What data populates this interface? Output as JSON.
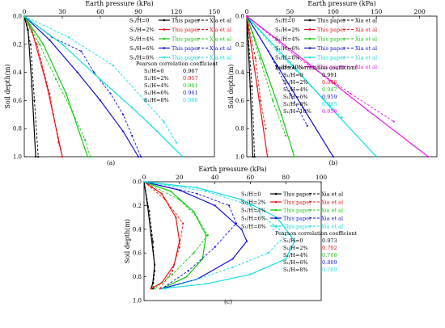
{
  "chart_data": [
    {
      "type": "line",
      "panel_label": "(a)",
      "xlabel": "Earth pressure (kPa)",
      "ylabel": "Soil depth(m)",
      "xlim": [
        0,
        150
      ],
      "ylim": [
        0,
        1.0
      ],
      "xticks": [
        "0",
        "30",
        "60",
        "90",
        "120",
        "150"
      ],
      "yticks": [
        "0.0",
        "0.2",
        "0.4",
        "0.6",
        "0.8",
        "1.0"
      ],
      "legend": [
        {
          "cond": "S₁/H=0",
          "a": "This paper",
          "b": "Xia et al",
          "color": "#000000"
        },
        {
          "cond": "S₁/H=2%",
          "a": "This paper",
          "b": "Xia et al",
          "color": "#ee1111"
        },
        {
          "cond": "S₁/H=4%",
          "a": "This paper",
          "b": "Xia et al",
          "color": "#11cc11"
        },
        {
          "cond": "S₁/H=6%",
          "a": "This paper",
          "b": "Xia et al",
          "color": "#1111dd"
        },
        {
          "cond": "S₁/H=8%",
          "a": "This paper",
          "b": "Xia et al",
          "color": "#11dddd"
        }
      ],
      "pearson_title": "Pearson correlation coefficient",
      "pearson": [
        {
          "cond": "S₁/H=0",
          "value": "0.967",
          "color": "#000000"
        },
        {
          "cond": "S₁/H=2%",
          "value": "0.957",
          "color": "#ee1111"
        },
        {
          "cond": "S₁/H=4%",
          "value": "0.961",
          "color": "#11cc11"
        },
        {
          "cond": "S₁/H=6%",
          "value": "0.961",
          "color": "#1111dd"
        },
        {
          "cond": "S₁/H=8%",
          "value": "0.988",
          "color": "#11dddd"
        }
      ],
      "series": [
        {
          "color": "#000000",
          "style": "solid",
          "x": [
            0,
            3,
            6,
            9
          ],
          "y": [
            0,
            0.1,
            0.5,
            1.0
          ]
        },
        {
          "color": "#000000",
          "style": "dashed",
          "x": [
            0,
            5,
            8,
            11
          ],
          "y": [
            0,
            0.2,
            0.6,
            1.0
          ]
        },
        {
          "color": "#ee1111",
          "style": "solid",
          "x": [
            0,
            6,
            18,
            30
          ],
          "y": [
            0,
            0.1,
            0.5,
            1.0
          ]
        },
        {
          "color": "#ee1111",
          "style": "dashed",
          "x": [
            0,
            10,
            20,
            23,
            27,
            30
          ],
          "y": [
            0,
            0.2,
            0.55,
            0.7,
            0.9,
            1.0
          ]
        },
        {
          "color": "#11cc11",
          "style": "solid",
          "x": [
            0,
            15,
            33,
            50
          ],
          "y": [
            0,
            0.2,
            0.55,
            1.0
          ]
        },
        {
          "color": "#11cc11",
          "style": "dashed",
          "x": [
            0,
            12,
            25,
            38,
            48,
            52
          ],
          "y": [
            0,
            0.2,
            0.45,
            0.68,
            0.88,
            1.0
          ]
        },
        {
          "color": "#1111dd",
          "style": "solid",
          "x": [
            0,
            20,
            42,
            60,
            78,
            90
          ],
          "y": [
            0,
            0.17,
            0.4,
            0.6,
            0.82,
            1.0
          ]
        },
        {
          "color": "#1111dd",
          "style": "dashed",
          "x": [
            0,
            22,
            45,
            55,
            68,
            78,
            85,
            92
          ],
          "y": [
            0,
            0.15,
            0.25,
            0.4,
            0.55,
            0.7,
            0.85,
            1.0
          ]
        },
        {
          "color": "#11dddd",
          "style": "solid",
          "x": [
            0,
            30,
            60,
            85,
            105,
            125
          ],
          "y": [
            0,
            0.2,
            0.45,
            0.65,
            0.82,
            1.0
          ]
        },
        {
          "color": "#11dddd",
          "style": "dashed",
          "x": [
            0,
            35,
            70,
            95,
            110,
            120
          ],
          "y": [
            0,
            0.15,
            0.35,
            0.6,
            0.75,
            0.9
          ]
        }
      ]
    },
    {
      "type": "line",
      "panel_label": "(b)",
      "xlabel": "Earth pressure (kPa)",
      "ylabel": "Soil depth(m)",
      "xlim": [
        0,
        220
      ],
      "ylim": [
        0,
        1.0
      ],
      "xticks": [
        "0",
        "50",
        "100",
        "150",
        "200"
      ],
      "xtick_values": [
        0,
        50,
        100,
        150,
        200
      ],
      "yticks": [
        "0.0",
        "0.2",
        "0.4",
        "0.6",
        "0.8",
        "1.0"
      ],
      "legend": [
        {
          "cond": "S₁/H=0",
          "a": "This paper",
          "b": "Xia et al",
          "color": "#000000"
        },
        {
          "cond": "S₁/H=2%",
          "a": "This paper",
          "b": "Xia et al",
          "color": "#ee1111"
        },
        {
          "cond": "S₁/H=4%",
          "a": "This paper",
          "b": "Xia et al",
          "color": "#11cc11"
        },
        {
          "cond": "S₁/H=6%",
          "a": "This paper",
          "b": "Xia et al",
          "color": "#1111dd"
        },
        {
          "cond": "S₁/H=8%",
          "a": "This paper",
          "b": "Xia et al",
          "color": "#11dddd"
        },
        {
          "cond": "S₁/H=10%",
          "a": "This paper",
          "b": "Xia et al",
          "color": "#ee11ee"
        }
      ],
      "pearson_title": "Pearson correlation coefficient",
      "pearson": [
        {
          "cond": "S₁/H=0",
          "value": "0.991",
          "color": "#000000"
        },
        {
          "cond": "S₁/H=2%",
          "value": "0.946",
          "color": "#ee1111"
        },
        {
          "cond": "S₁/H=4%",
          "value": "0.947",
          "color": "#11cc11"
        },
        {
          "cond": "S₁/H=6%",
          "value": "0.959",
          "color": "#1111dd"
        },
        {
          "cond": "S₁/H=8%",
          "value": "0.965",
          "color": "#11dddd"
        },
        {
          "cond": "S₁/H=10%",
          "value": "0.956",
          "color": "#ee11ee"
        }
      ],
      "series": [
        {
          "color": "#000000",
          "style": "solid",
          "x": [
            0,
            4,
            7
          ],
          "y": [
            0,
            0.5,
            1.0
          ]
        },
        {
          "color": "#000000",
          "style": "dashed",
          "x": [
            0,
            6,
            9
          ],
          "y": [
            0,
            0.5,
            1.0
          ]
        },
        {
          "color": "#ee1111",
          "style": "solid",
          "x": [
            0,
            12,
            24
          ],
          "y": [
            0,
            0.5,
            1.0
          ]
        },
        {
          "color": "#ee1111",
          "style": "dashed",
          "x": [
            0,
            10,
            16,
            22
          ],
          "y": [
            0,
            0.3,
            0.6,
            0.8
          ]
        },
        {
          "color": "#11cc11",
          "style": "solid",
          "x": [
            0,
            20,
            40,
            55
          ],
          "y": [
            0,
            0.35,
            0.7,
            1.0
          ]
        },
        {
          "color": "#11cc11",
          "style": "dashed",
          "x": [
            0,
            15,
            30,
            45
          ],
          "y": [
            0,
            0.3,
            0.6,
            0.85
          ]
        },
        {
          "color": "#1111dd",
          "style": "solid",
          "x": [
            0,
            30,
            65,
            100
          ],
          "y": [
            0,
            0.3,
            0.65,
            1.0
          ]
        },
        {
          "color": "#1111dd",
          "style": "dashed",
          "x": [
            0,
            25,
            50,
            70
          ],
          "y": [
            0,
            0.25,
            0.55,
            0.78
          ]
        },
        {
          "color": "#11dddd",
          "style": "solid",
          "x": [
            0,
            50,
            100,
            150
          ],
          "y": [
            0,
            0.33,
            0.67,
            1.0
          ]
        },
        {
          "color": "#11dddd",
          "style": "dashed",
          "x": [
            0,
            35,
            75,
            110
          ],
          "y": [
            0,
            0.25,
            0.5,
            0.72
          ]
        },
        {
          "color": "#ee11ee",
          "style": "solid",
          "x": [
            0,
            70,
            140,
            210
          ],
          "y": [
            0,
            0.33,
            0.67,
            1.0
          ]
        },
        {
          "color": "#ee11ee",
          "style": "dashed",
          "x": [
            0,
            60,
            120,
            170
          ],
          "y": [
            0,
            0.3,
            0.55,
            0.75
          ]
        }
      ]
    },
    {
      "type": "line",
      "panel_label": "(c)",
      "xlabel": "Earth pressure (kPa)",
      "ylabel": "Soil depth(m)",
      "xlim": [
        0,
        100
      ],
      "ylim": [
        0,
        1.0
      ],
      "xticks": [
        "0",
        "20",
        "40",
        "60",
        "80",
        "100"
      ],
      "yticks": [
        "0.0",
        "0.2",
        "0.4",
        "0.6",
        "0.8",
        "1.0"
      ],
      "legend": [
        {
          "cond": "S₁/H=0",
          "a": "This paper",
          "b": "Xia et al",
          "color": "#000000"
        },
        {
          "cond": "S₁/H=2%",
          "a": "This paper",
          "b": "Xia et al",
          "color": "#ee1111"
        },
        {
          "cond": "S₁/H=4%",
          "a": "This paper",
          "b": "Xia et al",
          "color": "#11cc11"
        },
        {
          "cond": "S₁/H=6%",
          "a": "This paper",
          "b": "Xia et al",
          "color": "#1111dd"
        },
        {
          "cond": "S₁/H=8%",
          "a": "This paper",
          "b": "Xia et al",
          "color": "#11dddd"
        }
      ],
      "pearson_title": "Pearson correlation coefficient",
      "pearson": [
        {
          "cond": "S₁/H=0",
          "value": "0.973",
          "color": "#000000"
        },
        {
          "cond": "S₁/H=2%",
          "value": "0.792",
          "color": "#ee1111"
        },
        {
          "cond": "S₁/H=4%",
          "value": "0.760",
          "color": "#11cc11"
        },
        {
          "cond": "S₁/H=6%",
          "value": "0.809",
          "color": "#1111dd"
        },
        {
          "cond": "S₁/H=8%",
          "value": "0.769",
          "color": "#11dddd"
        }
      ],
      "series": [
        {
          "color": "#000000",
          "style": "solid",
          "x": [
            0,
            2,
            4,
            6,
            5,
            4
          ],
          "y": [
            0,
            0.2,
            0.45,
            0.7,
            0.85,
            0.9
          ]
        },
        {
          "color": "#000000",
          "style": "dashed",
          "x": [
            0,
            3,
            5,
            6,
            5
          ],
          "y": [
            0,
            0.25,
            0.5,
            0.75,
            0.9
          ]
        },
        {
          "color": "#ee1111",
          "style": "solid",
          "x": [
            0,
            10,
            18,
            20,
            17,
            10,
            4
          ],
          "y": [
            0,
            0.1,
            0.3,
            0.5,
            0.7,
            0.85,
            0.9
          ]
        },
        {
          "color": "#ee1111",
          "style": "dashed",
          "x": [
            0,
            12,
            22,
            20,
            16,
            9
          ],
          "y": [
            0,
            0.15,
            0.35,
            0.55,
            0.75,
            0.9
          ]
        },
        {
          "color": "#11cc11",
          "style": "solid",
          "x": [
            0,
            15,
            28,
            35,
            33,
            24,
            10
          ],
          "y": [
            0,
            0.08,
            0.25,
            0.45,
            0.65,
            0.8,
            0.9
          ]
        },
        {
          "color": "#11cc11",
          "style": "dashed",
          "x": [
            0,
            20,
            30,
            36,
            28,
            16,
            6
          ],
          "y": [
            0,
            0.15,
            0.3,
            0.45,
            0.6,
            0.78,
            0.9
          ]
        },
        {
          "color": "#1111dd",
          "style": "solid",
          "x": [
            0,
            20,
            40,
            55,
            58,
            50,
            30,
            10
          ],
          "y": [
            0,
            0.07,
            0.2,
            0.4,
            0.5,
            0.65,
            0.82,
            0.9
          ]
        },
        {
          "color": "#1111dd",
          "style": "dashed",
          "x": [
            0,
            30,
            48,
            52,
            40,
            25,
            10
          ],
          "y": [
            0,
            0.1,
            0.2,
            0.35,
            0.55,
            0.75,
            0.9
          ]
        },
        {
          "color": "#11dddd",
          "style": "solid",
          "x": [
            0,
            30,
            55,
            75,
            85,
            80,
            60,
            35,
            10
          ],
          "y": [
            0,
            0.05,
            0.15,
            0.3,
            0.5,
            0.65,
            0.78,
            0.86,
            0.9
          ]
        },
        {
          "color": "#11dddd",
          "style": "dashed",
          "x": [
            0,
            35,
            60,
            80,
            70,
            50,
            30,
            12
          ],
          "y": [
            0,
            0.08,
            0.2,
            0.45,
            0.6,
            0.72,
            0.82,
            0.9
          ]
        }
      ]
    }
  ]
}
